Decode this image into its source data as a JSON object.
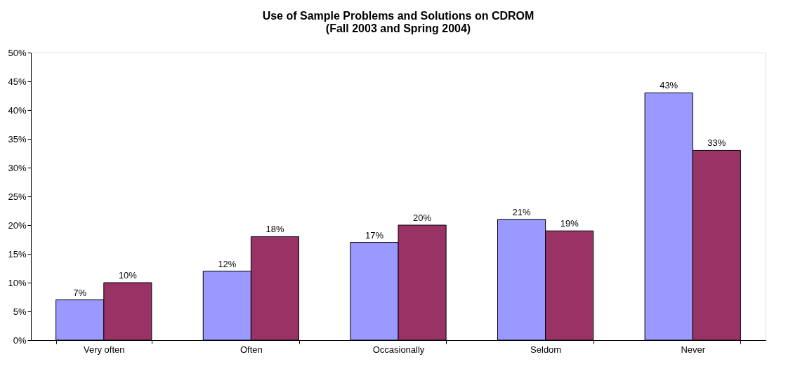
{
  "chart_data": {
    "type": "bar",
    "title": "Use of Sample Problems and Solutions on CDROM\n(Fall 2003 and Spring 2004)",
    "categories": [
      "Very often",
      "Often",
      "Occasionally",
      "Seldom",
      "Never"
    ],
    "series": [
      {
        "color": "#9999ff",
        "values": [
          7,
          12,
          17,
          21,
          43
        ],
        "value_labels": [
          "7%",
          "12%",
          "17%",
          "21%",
          "43%"
        ]
      },
      {
        "color": "#993366",
        "values": [
          10,
          18,
          20,
          19,
          33
        ],
        "value_labels": [
          "10%",
          "18%",
          "20%",
          "19%",
          "33%"
        ]
      }
    ],
    "ylim": [
      0,
      50
    ],
    "yticks": [
      {
        "value": 0,
        "label": "0%"
      },
      {
        "value": 5,
        "label": "5%"
      },
      {
        "value": 10,
        "label": "10%"
      },
      {
        "value": 15,
        "label": "15%"
      },
      {
        "value": 20,
        "label": "20%"
      },
      {
        "value": 25,
        "label": "25%"
      },
      {
        "value": 30,
        "label": "30%"
      },
      {
        "value": 35,
        "label": "35%"
      },
      {
        "value": 40,
        "label": "40%"
      },
      {
        "value": 45,
        "label": "45%"
      },
      {
        "value": 50,
        "label": "50%"
      }
    ],
    "grid": false
  }
}
